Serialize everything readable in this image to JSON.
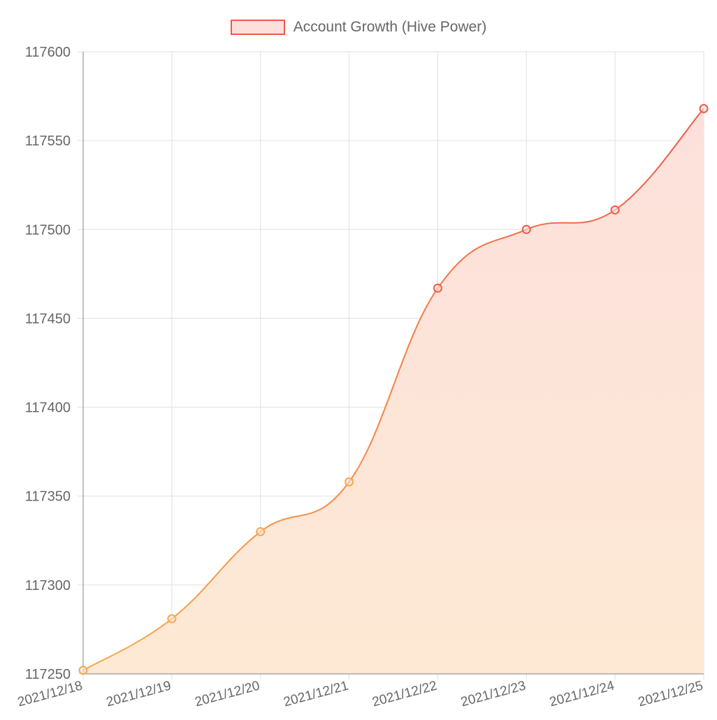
{
  "chart_data": {
    "type": "area",
    "title": "",
    "xlabel": "",
    "ylabel": "",
    "categories": [
      "2021/12/18",
      "2021/12/19",
      "2021/12/20",
      "2021/12/21",
      "2021/12/22",
      "2021/12/23",
      "2021/12/24",
      "2021/12/25"
    ],
    "series": [
      {
        "name": "Account Growth (Hive Power)",
        "values": [
          117252,
          117281,
          117330,
          117358,
          117467,
          117500,
          117511,
          117568
        ]
      }
    ],
    "ylim": [
      117250,
      117600
    ],
    "yticks": [
      117600,
      117550,
      117500,
      117450,
      117400,
      117350,
      117300,
      117250
    ],
    "grid": true,
    "legend": "top-center",
    "colors": {
      "line_start": "#f8a94c",
      "line_end": "#ee5a48",
      "fill_start": "#fde9d4",
      "fill_end": "#fde0dc",
      "grid": "#e0e0e0",
      "axis": "#999999"
    }
  }
}
